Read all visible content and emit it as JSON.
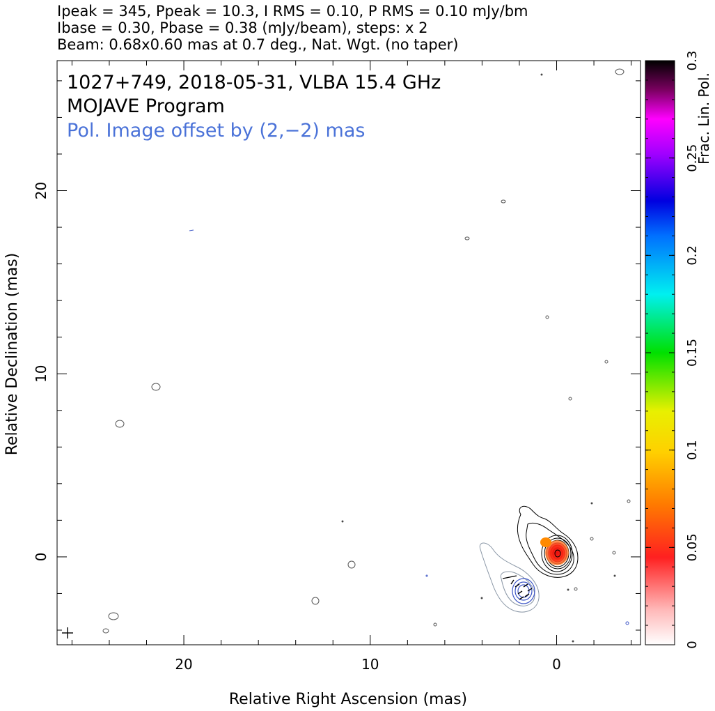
{
  "header": {
    "line1": "Ipeak = 345, Ppeak = 10.3, I RMS = 0.10, P RMS = 0.10 mJy/bm",
    "line2": "Ibase = 0.30, Pbase = 0.38 (mJy/beam), steps: x 2",
    "line3": "Beam: 0.68x0.60 mas at 0.7 deg., Nat. Wgt. (no taper)"
  },
  "annotations": {
    "source_line": "1027+749, 2018-05-31, VLBA 15.4 GHz",
    "program_line": "MOJAVE Program",
    "offset_line": "Pol. Image offset by (2,−2) mas",
    "offset_color": "#4a72d8"
  },
  "chart_data": {
    "type": "heatmap",
    "xlabel": "Relative Right Ascension (mas)",
    "ylabel": "Relative Declination (mas)",
    "xlim": [
      26.8,
      -4.5
    ],
    "ylim": [
      -4.8,
      27.1
    ],
    "x_ticks": [
      20,
      10,
      0
    ],
    "y_ticks": [
      20,
      10,
      0
    ],
    "colorbar": {
      "label": "Frac. Lin. Pol.",
      "range": [
        0,
        0.3
      ],
      "ticks": [
        0,
        0.05,
        0.1,
        0.15,
        0.2,
        0.25,
        0.3
      ]
    },
    "contour_colors": {
      "total_intensity": "#000000",
      "pol_base": "#8a97a6",
      "pol_image": "#3d56c6"
    },
    "core": {
      "x": 0,
      "y": 0,
      "frac_pol_max": 0.05
    },
    "pol_image_center": {
      "x": 2,
      "y": -2
    },
    "beam": {
      "major_mas": 0.68,
      "minor_mas": 0.6,
      "pa_deg": 0.7
    }
  }
}
